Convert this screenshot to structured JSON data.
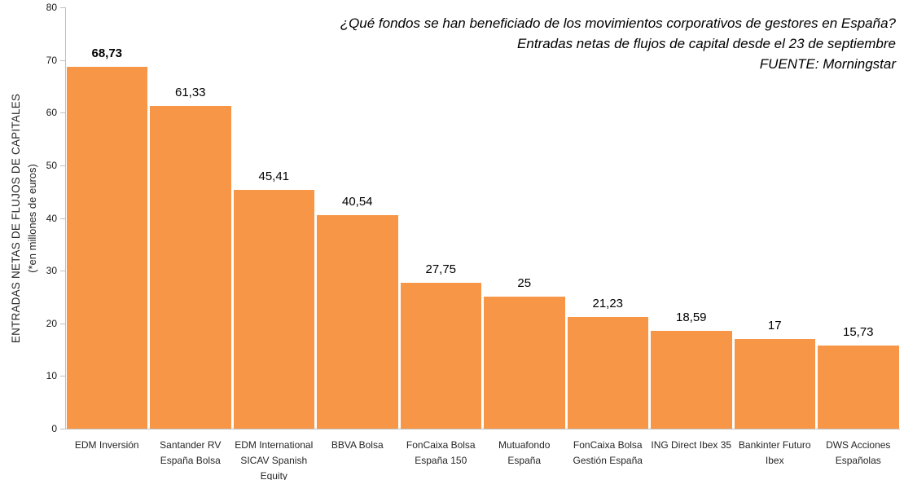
{
  "chart_data": {
    "type": "bar",
    "title_lines": [
      "¿Qué fondos se han beneficiado de los movimientos corporativos de gestores en España?",
      "Entradas netas de flujos de capital desde el 23 de septiembre",
      "FUENTE: Morningstar"
    ],
    "ylabel_line1": "ENTRADAS NETAS DE FLUJOS DE CAPITALES",
    "ylabel_line2": "(*en millones de euros)",
    "categories": [
      "EDM Inversión",
      "Santander RV España Bolsa",
      "EDM International SICAV Spanish Equity",
      "BBVA Bolsa",
      "FonCaixa Bolsa España 150",
      "Mutuafondo España",
      "FonCaixa Bolsa Gestión España",
      "ING Direct Ibex 35",
      "Bankinter Futuro Ibex",
      "DWS Acciones Españolas"
    ],
    "category_lines": [
      [
        "EDM Inversión"
      ],
      [
        "Santander RV",
        "España Bolsa"
      ],
      [
        "EDM International",
        "SICAV Spanish",
        "Equity"
      ],
      [
        "BBVA Bolsa"
      ],
      [
        "FonCaixa Bolsa",
        "España 150"
      ],
      [
        "Mutuafondo",
        "España"
      ],
      [
        "FonCaixa Bolsa",
        "Gestión España"
      ],
      [
        "ING Direct Ibex 35"
      ],
      [
        "Bankinter Futuro",
        "Ibex"
      ],
      [
        "DWS Acciones",
        "Españolas"
      ]
    ],
    "values": [
      68.73,
      61.33,
      45.41,
      40.54,
      27.75,
      25,
      21.23,
      18.59,
      17,
      15.73
    ],
    "value_labels": [
      "68,73",
      "61,33",
      "45,41",
      "40,54",
      "27,75",
      "25",
      "21,23",
      "18,59",
      "17",
      "15,73"
    ],
    "first_value_bold": true,
    "ylim": [
      0,
      80
    ],
    "yticks": [
      0,
      10,
      20,
      30,
      40,
      50,
      60,
      70,
      80
    ],
    "grid": false,
    "legend_position": "none",
    "bar_color": "#F79646",
    "axis_color": "#BFBFBF"
  }
}
